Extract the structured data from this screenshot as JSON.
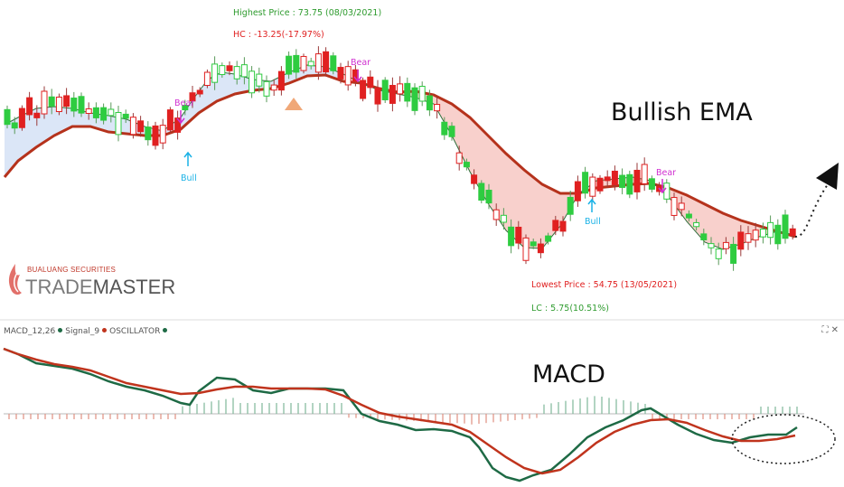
{
  "chart_data": [
    {
      "type": "candlestick",
      "panel": "price",
      "series": [
        {
          "name": "Price",
          "values": []
        },
        {
          "name": "EMA",
          "values": []
        }
      ],
      "annotations": {
        "highest_price": "Highest Price : 73.75 (08/03/2021)",
        "hc": "HC : -13.25(-17.97%)",
        "lowest_price": "Lowest Price : 54.75 (13/05/2021)",
        "lc": "LC : 5.75(10.51%)",
        "bear_label": "Bear",
        "bull_label": "Bull"
      },
      "callout": "Bullish EMA"
    },
    {
      "type": "line",
      "panel": "macd",
      "legend": [
        "MACD_12,26",
        "Signal_9",
        "OSCILLATOR"
      ],
      "callout": "MACD"
    }
  ],
  "logo": {
    "small": "BUALUANG SECURITIES",
    "trade": "TRADE",
    "master": "MASTER"
  },
  "legend": {
    "macd": "MACD_12,26",
    "signal": "Signal_9",
    "osc": "OSCILLATOR"
  },
  "controls": {
    "corner": "⛶ ✕"
  },
  "colors": {
    "up": "#2ecc40",
    "down": "#e02020",
    "ema": "#b5321c",
    "ema_fill_bull": "#dbe6f7",
    "ema_fill_bear": "#f8d0cc",
    "macd": "#1e6a45",
    "signal": "#c0341d",
    "hist_pos": "#7fb89a",
    "hist_neg": "#e08f80",
    "bear": "#d02fd0",
    "bull": "#1ab2e6",
    "highest_text": "#2e9b2e",
    "hc_text": "#e02020",
    "lowest_text": "#e02020",
    "lc_text": "#2e9b2e"
  }
}
